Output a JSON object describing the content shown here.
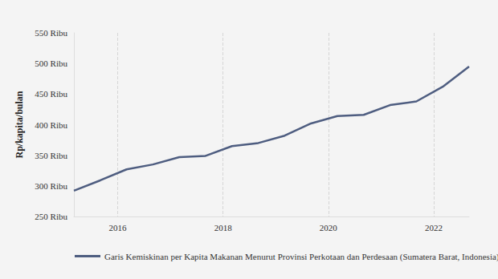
{
  "chart_data": {
    "type": "line",
    "y_label": "Rp/kapita/bulan",
    "x": [
      2015.17,
      2015.67,
      2016.17,
      2016.67,
      2017.17,
      2017.67,
      2018.17,
      2018.67,
      2019.17,
      2019.67,
      2020.17,
      2020.67,
      2021.17,
      2021.67,
      2022.17,
      2022.67
    ],
    "series": [
      {
        "name": "Garis Kemiskinan per Kapita Makanan Menurut Provinsi Perkotaan dan Perdesaan (Sumatera Barat, Indonesia)",
        "color": "#4e5d80",
        "values": [
          292,
          309,
          327,
          335,
          347,
          349,
          365,
          370,
          382,
          402,
          414,
          416,
          432,
          438,
          462,
          495
        ]
      }
    ],
    "xlim": [
      2015.17,
      2022.67
    ],
    "xticks": [
      2016,
      2018,
      2020,
      2022
    ],
    "ylim": [
      250,
      550
    ],
    "yticks": [
      {
        "value": 250,
        "label": "250 Ribu"
      },
      {
        "value": 300,
        "label": "300 Ribu"
      },
      {
        "value": 350,
        "label": "350 Ribu"
      },
      {
        "value": 400,
        "label": "400 Ribu"
      },
      {
        "value": 450,
        "label": "450 Ribu"
      },
      {
        "value": 500,
        "label": "500 Ribu"
      },
      {
        "value": 550,
        "label": "550 Ribu"
      }
    ],
    "grid": true,
    "legend": "bottom"
  }
}
